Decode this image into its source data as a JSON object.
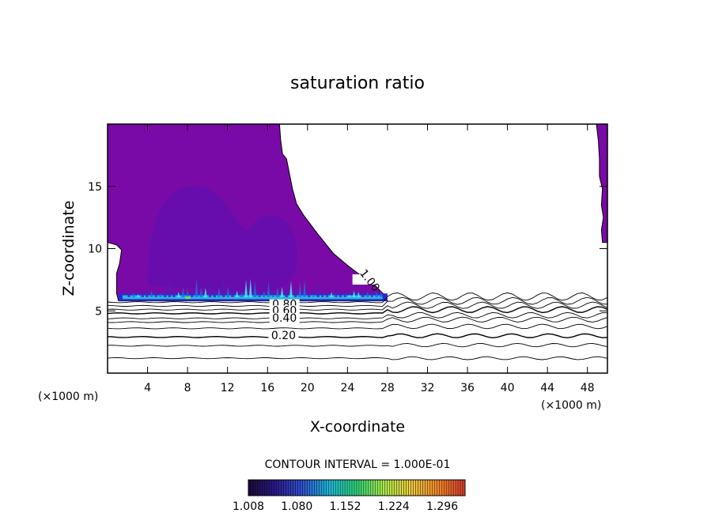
{
  "chart_data": {
    "type": "contour",
    "title": "saturation ratio",
    "xlabel": "X-coordinate",
    "ylabel": "Z-coordinate",
    "x_unit": "(×1000 m)",
    "y_unit": "(×1000 m)",
    "xlim": [
      0,
      50
    ],
    "ylim": [
      0,
      20
    ],
    "x_ticks": [
      4,
      8,
      12,
      16,
      20,
      24,
      28,
      32,
      36,
      40,
      44,
      48
    ],
    "y_ticks": [
      5,
      10,
      15
    ],
    "grid": false,
    "contour_interval_text": "CONTOUR INTERVAL = 1.000E-01",
    "contour_levels_labeled": [
      {
        "label": "1.00",
        "x": 26,
        "z": 7.3
      },
      {
        "label": "0.80",
        "x": 17.7,
        "z": 5.3
      },
      {
        "label": "0.60",
        "x": 17.7,
        "z": 4.8
      },
      {
        "label": "0.40",
        "x": 17.7,
        "z": 4.2
      },
      {
        "label": "0.20",
        "x": 17.6,
        "z": 2.8
      }
    ],
    "colorbar": {
      "min": 1.008,
      "max": 1.33,
      "tick_labels": [
        "1.008",
        "1.080",
        "1.152",
        "1.224",
        "1.296"
      ],
      "colors": [
        "#1e0a3c",
        "#2a1a8c",
        "#2f56d6",
        "#1fb8d8",
        "#2fd97a",
        "#a8e84a",
        "#f0d040",
        "#f08a2a",
        "#e0402a"
      ]
    },
    "regions": [
      {
        "name": "supersaturated-left",
        "value": 1.03,
        "color": "#7a0aa8"
      },
      {
        "name": "supersaturated-right-edge",
        "value": 1.03,
        "color": "#7a0aa8"
      },
      {
        "name": "core-bump",
        "value": 1.01,
        "color": "#5a10b0"
      },
      {
        "name": "cloud-base-layer",
        "value": 1.15,
        "color": "#2fb8d8"
      }
    ]
  }
}
